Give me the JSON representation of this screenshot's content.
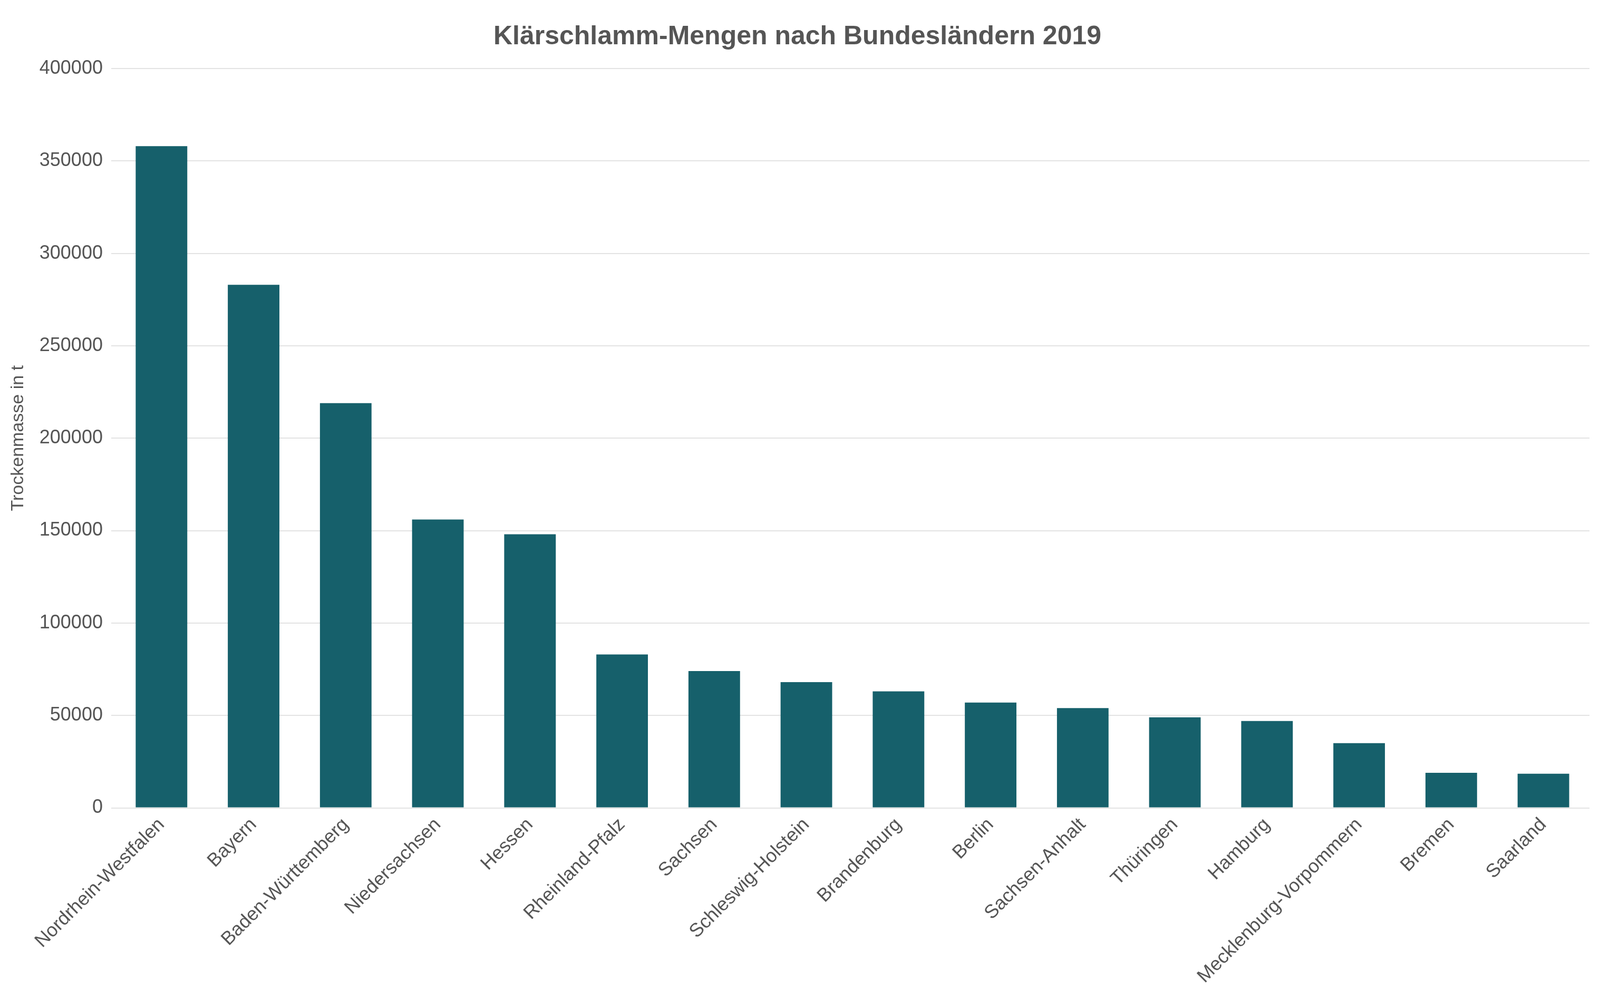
{
  "chart_data": {
    "type": "bar",
    "title": "Klärschlamm-Mengen nach Bundesländern 2019",
    "y_label": "Trockenmasse in t",
    "categories": [
      "Nordrhein-Westfalen",
      "Bayern",
      "Baden-Württemberg",
      "Niedersachsen",
      "Hessen",
      "Rheinland-Pfalz",
      "Sachsen",
      "Schleswig-Holstein",
      "Brandenburg",
      "Berlin",
      "Sachsen-Anhalt",
      "Thüringen",
      "Hamburg",
      "Mecklenburg-Vorpommern",
      "Bremen",
      "Saarland"
    ],
    "values": [
      358000,
      283000,
      219000,
      156000,
      148000,
      83000,
      74000,
      68000,
      63000,
      57000,
      54000,
      49000,
      47000,
      35000,
      19000,
      18500
    ],
    "color": "#16606b",
    "ylim": [
      0,
      400000
    ],
    "yticks": [
      0,
      50000,
      100000,
      150000,
      200000,
      250000,
      300000,
      350000,
      400000
    ],
    "grid": true
  }
}
